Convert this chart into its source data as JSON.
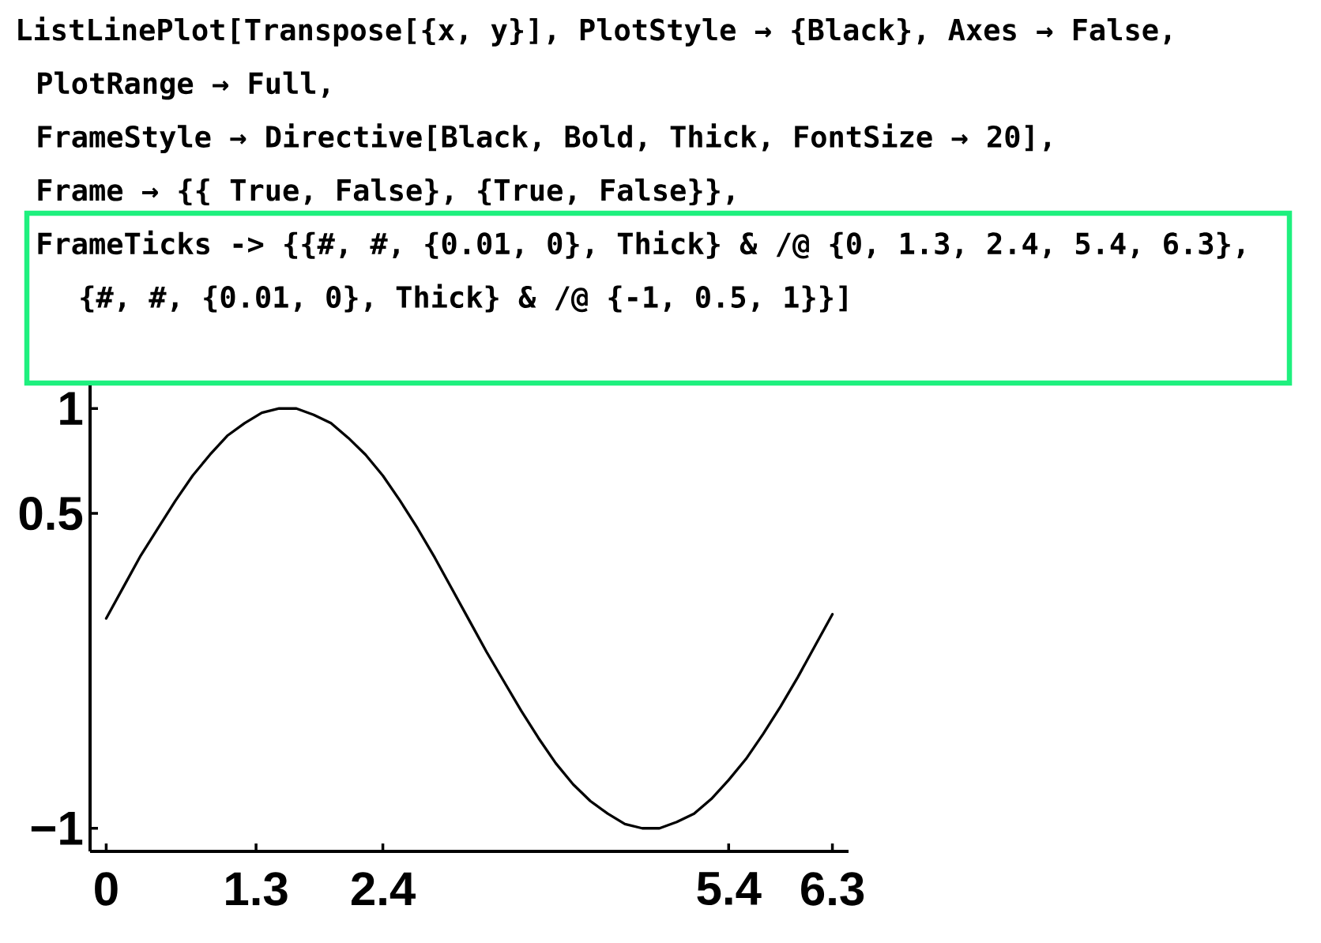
{
  "chart_data": {
    "type": "line",
    "annotations": [
      "ListLinePlot[Transpose[{x, y}], PlotStyle → {Black}, Axes → False,",
      "PlotRange → Full,",
      "FrameStyle → Directive[Black, Bold, Thick, FontSize → 20],",
      "Frame → {{ True, False}, {True, False}},",
      "FrameTicks -> {{#, #, {0.01, 0}, Thick} & /@ {0, 1.3, 2.4, 5.4, 6.3},",
      "{#, #, {0.01, 0}, Thick} & /@ {-1, 0.5, 1}}]"
    ],
    "x": [
      0,
      0.15,
      0.3,
      0.45,
      0.6,
      0.75,
      0.9,
      1.05,
      1.2,
      1.35,
      1.5,
      1.65,
      1.8,
      1.95,
      2.1,
      2.25,
      2.4,
      2.55,
      2.7,
      2.85,
      3.0,
      3.15,
      3.3,
      3.45,
      3.6,
      3.75,
      3.9,
      4.05,
      4.2,
      4.35,
      4.5,
      4.65,
      4.8,
      4.95,
      5.1,
      5.25,
      5.4,
      5.55,
      5.7,
      5.85,
      6.0,
      6.15,
      6.3
    ],
    "values": [
      0.0,
      0.15,
      0.3,
      0.43,
      0.56,
      0.68,
      0.78,
      0.87,
      0.93,
      0.98,
      1.0,
      1.0,
      0.97,
      0.93,
      0.86,
      0.78,
      0.68,
      0.56,
      0.43,
      0.29,
      0.14,
      -0.01,
      -0.16,
      -0.3,
      -0.44,
      -0.57,
      -0.69,
      -0.79,
      -0.87,
      -0.93,
      -0.98,
      -1.0,
      -1.0,
      -0.97,
      -0.93,
      -0.86,
      -0.77,
      -0.67,
      -0.55,
      -0.42,
      -0.28,
      -0.13,
      0.02
    ],
    "color": "#000000",
    "xlim": [
      -0.14,
      6.44
    ],
    "ylim": [
      -1.11,
      1.11
    ],
    "xticks": [
      0,
      1.3,
      2.4,
      5.4,
      6.3
    ],
    "yticks": [
      {
        "value": -1,
        "label": "−1"
      },
      0.5,
      1
    ]
  }
}
